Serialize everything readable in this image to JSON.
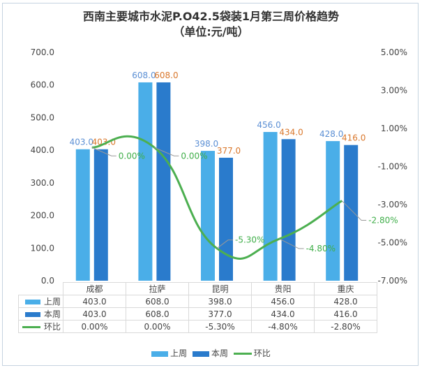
{
  "chart_data": {
    "type": "bar",
    "title": "西南主要城市水泥P.O42.5袋装1月第三周价格趋势",
    "subtitle": "（单位:元/吨）",
    "categories": [
      "成都",
      "拉萨",
      "昆明",
      "贵阳",
      "重庆"
    ],
    "series": [
      {
        "name": "上周",
        "type": "bar",
        "color": "#4aaee8",
        "values": [
          403.0,
          608.0,
          398.0,
          456.0,
          428.0
        ],
        "labels": [
          "403.0",
          "608.0",
          "398.0",
          "456.0",
          "428.0"
        ]
      },
      {
        "name": "本周",
        "type": "bar",
        "color": "#2a7bcc",
        "values": [
          403.0,
          608.0,
          377.0,
          434.0,
          416.0
        ],
        "labels": [
          "403.0",
          "608.0",
          "377.0",
          "434.0",
          "416.0"
        ]
      },
      {
        "name": "环比",
        "type": "line",
        "axis": "right",
        "color": "#4caf50",
        "values": [
          0.0,
          0.0,
          -5.3,
          -4.8,
          -2.8
        ],
        "labels": [
          "0.00%",
          "0.00%",
          "-5.30%",
          "-4.80%",
          "-2.80%"
        ]
      }
    ],
    "ylim": [
      0,
      700
    ],
    "y_ticks": [
      "0.0",
      "100.0",
      "200.0",
      "300.0",
      "400.0",
      "500.0",
      "600.0",
      "700.0"
    ],
    "y2lim": [
      -7,
      5
    ],
    "y2_ticks": [
      "-7.00%",
      "-5.00%",
      "-3.00%",
      "-1.00%",
      "1.00%",
      "3.00%",
      "5.00%"
    ],
    "legend": "bottom",
    "grid": false,
    "data_table": true
  },
  "table": {
    "rows": [
      {
        "label": "上周",
        "values": [
          "403.0",
          "608.0",
          "398.0",
          "456.0",
          "428.0"
        ]
      },
      {
        "label": "本周",
        "values": [
          "403.0",
          "608.0",
          "377.0",
          "434.0",
          "416.0"
        ]
      },
      {
        "label": "环比",
        "values": [
          "0.00%",
          "0.00%",
          "-5.30%",
          "-4.80%",
          "-2.80%"
        ]
      }
    ]
  },
  "legend_items": [
    "上周",
    "本周",
    "环比"
  ]
}
